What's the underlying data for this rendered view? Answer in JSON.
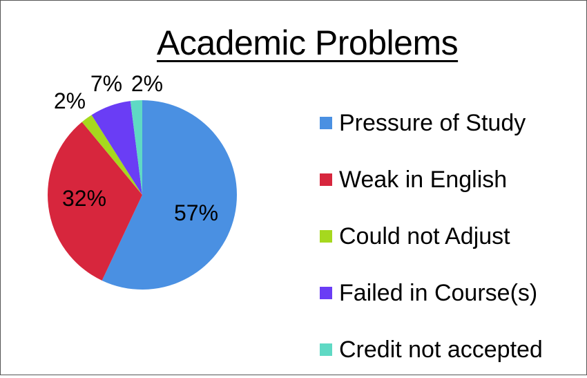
{
  "chart_data": {
    "type": "pie",
    "title": "Academic Problems",
    "categories": [
      "Pressure of Study",
      "Weak in English",
      "Could not Adjust",
      "Failed in Course(s)",
      "Credit not accepted"
    ],
    "values": [
      57,
      32,
      2,
      7,
      2
    ],
    "labels": [
      "57%",
      "32%",
      "2%",
      "7%",
      "2%"
    ],
    "colors": [
      "#4a90e2",
      "#d7263d",
      "#a6d81e",
      "#6a3df5",
      "#5fd9c4"
    ],
    "legend_position": "right"
  }
}
